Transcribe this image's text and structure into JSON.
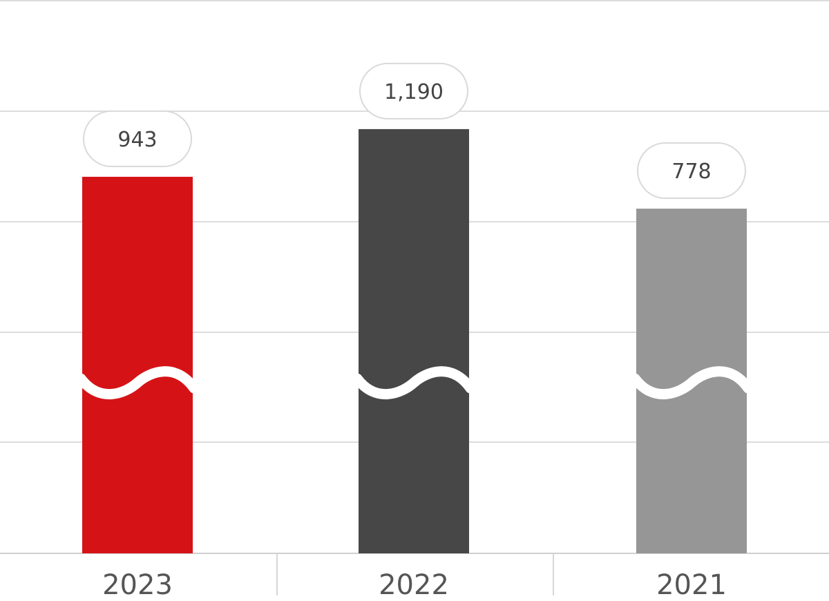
{
  "chart_data": {
    "type": "bar",
    "categories": [
      "2023",
      "2022",
      "2021"
    ],
    "values": [
      943,
      1190,
      778
    ],
    "value_labels": [
      "943",
      "1,190",
      "778"
    ],
    "colors": [
      "#d51317",
      "#474747",
      "#969696"
    ],
    "axis_break": true,
    "grid": true,
    "legend": "none",
    "title": "",
    "xlabel": "",
    "ylabel": ""
  }
}
